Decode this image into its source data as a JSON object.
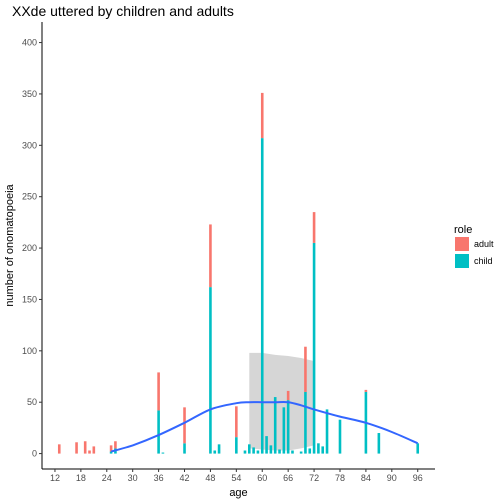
{
  "chart_data": {
    "type": "bar",
    "stacked": true,
    "title": "XXde uttered by children and adults",
    "xlabel": "age",
    "ylabel": "number of onomatopoeia",
    "xlim": [
      9,
      100
    ],
    "ylim": [
      -15,
      420
    ],
    "x_ticks": [
      12,
      18,
      24,
      30,
      36,
      42,
      48,
      54,
      60,
      66,
      72,
      78,
      84,
      90,
      96
    ],
    "y_ticks": [
      0,
      50,
      100,
      150,
      200,
      250,
      300,
      350,
      400
    ],
    "grid": false,
    "legend": {
      "title": "role",
      "position": "right",
      "entries": [
        "adult",
        "child"
      ]
    },
    "colors": {
      "adult": "#f8766d",
      "child": "#00bfc4",
      "smooth": "#3366ff",
      "ribbon": "#999999"
    },
    "series": [
      {
        "name": "child",
        "x": [
          25,
          26,
          36,
          37,
          42,
          48,
          49,
          50,
          54,
          56,
          57,
          58,
          59,
          60,
          61,
          62,
          63,
          64,
          65,
          66,
          67,
          69,
          70,
          71,
          72,
          73,
          74,
          75,
          78,
          84,
          87,
          96
        ],
        "values": [
          2,
          5,
          42,
          1,
          10,
          162,
          3,
          9,
          16,
          3,
          9,
          6,
          3,
          307,
          17,
          8,
          55,
          4,
          45,
          52,
          3,
          2,
          60,
          5,
          205,
          10,
          7,
          43,
          33,
          60,
          20,
          10
        ]
      },
      {
        "name": "adult",
        "x": [
          13,
          17,
          19,
          20,
          21,
          25,
          26,
          36,
          42,
          48,
          54,
          60,
          66,
          70,
          72,
          84
        ],
        "values": [
          9,
          11,
          12,
          3,
          7,
          6,
          7,
          37,
          35,
          61,
          30,
          44,
          9,
          44,
          30,
          2
        ]
      }
    ],
    "smooth": {
      "x": [
        25,
        30,
        36,
        42,
        48,
        54,
        57,
        60,
        63,
        66,
        69,
        72,
        78,
        84,
        90,
        96
      ],
      "y": [
        2,
        8,
        18,
        30,
        43,
        49,
        50,
        50,
        50,
        50,
        47,
        43,
        36,
        30,
        21,
        10
      ],
      "lower": [
        null,
        null,
        null,
        null,
        null,
        null,
        5,
        4,
        3,
        3,
        5,
        8,
        null,
        null,
        null,
        null
      ],
      "upper": [
        null,
        null,
        null,
        null,
        null,
        null,
        98,
        98,
        96,
        95,
        93,
        90,
        null,
        null,
        null,
        null
      ]
    }
  }
}
